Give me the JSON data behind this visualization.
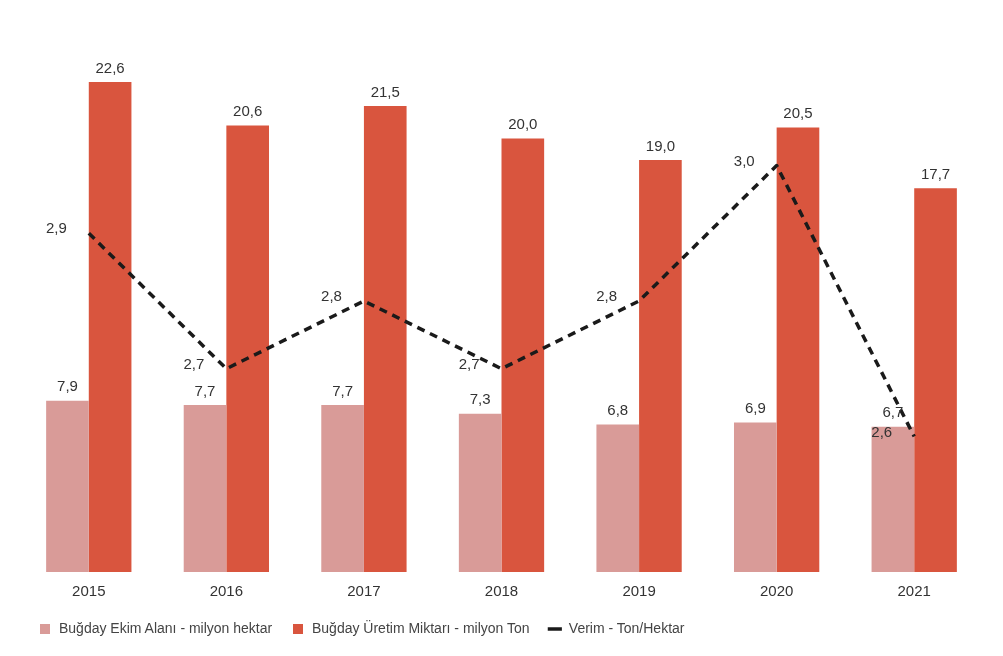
{
  "chart_data": {
    "type": "bar",
    "categories": [
      "2015",
      "2016",
      "2017",
      "2018",
      "2019",
      "2020",
      "2021"
    ],
    "series": [
      {
        "name": "Buğday Ekim Alanı - milyon hektar",
        "color": "#d99b98",
        "values": [
          7.9,
          7.7,
          7.7,
          7.3,
          6.8,
          6.9,
          6.7
        ],
        "value_labels": [
          "7,9",
          "7,7",
          "7,7",
          "7,3",
          "6,8",
          "6,9",
          "6,7"
        ]
      },
      {
        "name": "Buğday Üretim Miktarı - milyon Ton",
        "color": "#d9553e",
        "values": [
          22.6,
          20.6,
          21.5,
          20.0,
          19.0,
          20.5,
          17.7
        ],
        "value_labels": [
          "22,6",
          "20,6",
          "21,5",
          "20,0",
          "19,0",
          "20,5",
          "17,7"
        ]
      },
      {
        "name": "Verim - Ton/Hektar",
        "type": "line",
        "axis": "y2",
        "color": "#1a1a1a",
        "line_style": "dashed",
        "marker": "none",
        "values": [
          2.9,
          2.7,
          2.8,
          2.7,
          2.8,
          3.0,
          2.6
        ],
        "value_labels": [
          "2,9",
          "2,7",
          "2,8",
          "2,7",
          "2,8",
          "3,0",
          "2,6"
        ]
      }
    ],
    "tick_labels": "x",
    "legend": "bottom"
  }
}
